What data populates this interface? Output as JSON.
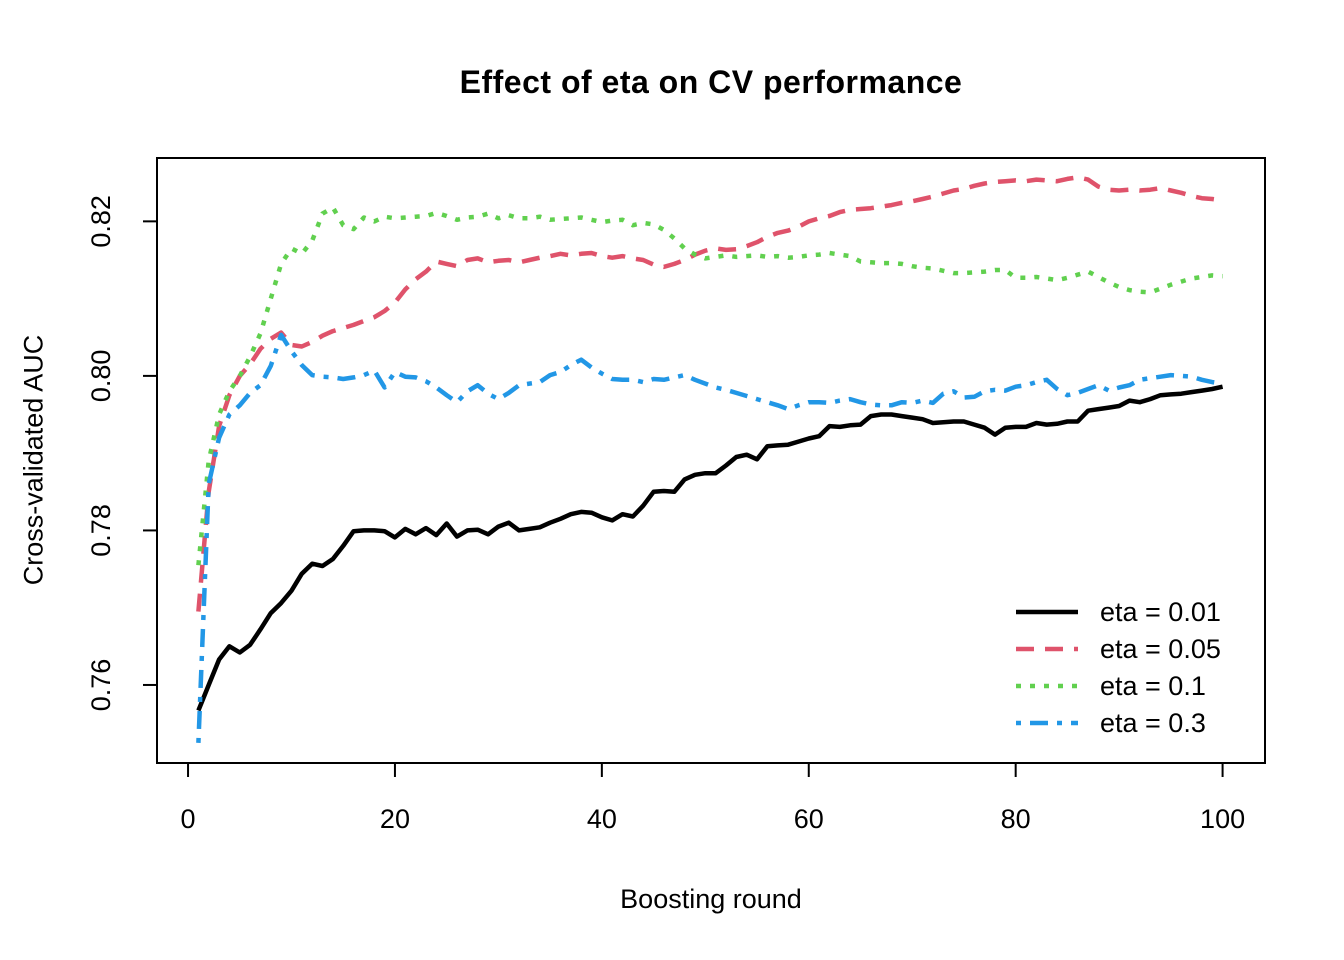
{
  "figure": {
    "title": "Effect of eta on CV performance",
    "xlabel": "Boosting round",
    "ylabel": "Cross-validated AUC"
  },
  "chart_data": {
    "type": "line",
    "title": "Effect of eta on CV performance",
    "xlabel": "Boosting round",
    "ylabel": "Cross-validated AUC",
    "grid": false,
    "legend_position": "bottom-right-inside",
    "xlim": [
      -3.0,
      104.1
    ],
    "ylim": [
      0.7499,
      0.8282
    ],
    "x_ticks": [
      0,
      20,
      40,
      60,
      80,
      100
    ],
    "x_tick_labels": [
      "0",
      "20",
      "40",
      "60",
      "80",
      "100"
    ],
    "y_ticks": [
      0.76,
      0.78,
      0.8,
      0.82
    ],
    "y_tick_labels": [
      "0.76",
      "0.78",
      "0.80",
      "0.82"
    ],
    "x": [
      1,
      2,
      3,
      4,
      5,
      6,
      7,
      8,
      9,
      10,
      11,
      12,
      13,
      14,
      15,
      16,
      17,
      18,
      19,
      20,
      21,
      22,
      23,
      24,
      25,
      26,
      27,
      28,
      29,
      30,
      31,
      32,
      33,
      34,
      35,
      36,
      37,
      38,
      39,
      40,
      41,
      42,
      43,
      44,
      45,
      46,
      47,
      48,
      49,
      50,
      51,
      52,
      53,
      54,
      55,
      56,
      57,
      58,
      59,
      60,
      61,
      62,
      63,
      64,
      65,
      66,
      67,
      68,
      69,
      70,
      71,
      72,
      73,
      74,
      75,
      76,
      77,
      78,
      79,
      80,
      81,
      82,
      83,
      84,
      85,
      86,
      87,
      88,
      89,
      90,
      91,
      92,
      93,
      94,
      95,
      96,
      97,
      98,
      99,
      100
    ],
    "series": [
      {
        "name": "eta = 0.01",
        "color": "#000000",
        "line_style": "solid",
        "values": [
          0.7567,
          0.76,
          0.7633,
          0.765,
          0.7642,
          0.7652,
          0.7672,
          0.7693,
          0.7706,
          0.7722,
          0.7744,
          0.7757,
          0.7754,
          0.7763,
          0.778,
          0.7799,
          0.78,
          0.78,
          0.7799,
          0.7791,
          0.7802,
          0.7795,
          0.7803,
          0.7794,
          0.7809,
          0.7792,
          0.78,
          0.7801,
          0.7795,
          0.7805,
          0.781,
          0.78,
          0.7802,
          0.7804,
          0.781,
          0.7815,
          0.7821,
          0.7824,
          0.7823,
          0.7817,
          0.7813,
          0.7821,
          0.7818,
          0.7832,
          0.785,
          0.7851,
          0.785,
          0.7866,
          0.7872,
          0.7874,
          0.7874,
          0.7884,
          0.7895,
          0.7898,
          0.7892,
          0.7909,
          0.791,
          0.7911,
          0.7915,
          0.7919,
          0.7922,
          0.7935,
          0.7934,
          0.7936,
          0.7937,
          0.7948,
          0.795,
          0.795,
          0.7948,
          0.7946,
          0.7944,
          0.7939,
          0.794,
          0.7941,
          0.7941,
          0.7937,
          0.7933,
          0.7924,
          0.7933,
          0.7934,
          0.7934,
          0.7939,
          0.7937,
          0.7938,
          0.7941,
          0.7941,
          0.7955,
          0.7957,
          0.7959,
          0.7961,
          0.7968,
          0.7966,
          0.797,
          0.7975,
          0.7976,
          0.7977,
          0.7979,
          0.7981,
          0.7983,
          0.7986
        ]
      },
      {
        "name": "eta = 0.05",
        "color": "#DF536B",
        "line_style": "dashed",
        "values": [
          0.7695,
          0.785,
          0.7935,
          0.7975,
          0.8,
          0.8015,
          0.8035,
          0.8048,
          0.8056,
          0.804,
          0.8038,
          0.8044,
          0.8052,
          0.8058,
          0.8062,
          0.8066,
          0.8071,
          0.8076,
          0.8084,
          0.8095,
          0.8112,
          0.8125,
          0.8135,
          0.8148,
          0.8145,
          0.8142,
          0.815,
          0.8152,
          0.8147,
          0.8149,
          0.815,
          0.8147,
          0.815,
          0.8153,
          0.8155,
          0.8158,
          0.8156,
          0.8158,
          0.8159,
          0.8155,
          0.8153,
          0.8155,
          0.8152,
          0.815,
          0.8144,
          0.8141,
          0.8145,
          0.815,
          0.8157,
          0.8162,
          0.8165,
          0.8163,
          0.8164,
          0.8168,
          0.8173,
          0.818,
          0.8185,
          0.8188,
          0.8193,
          0.82,
          0.8204,
          0.8207,
          0.8212,
          0.8215,
          0.8216,
          0.8217,
          0.8219,
          0.8221,
          0.8224,
          0.8226,
          0.8229,
          0.8232,
          0.8236,
          0.824,
          0.8242,
          0.8246,
          0.8249,
          0.8251,
          0.8252,
          0.8253,
          0.8252,
          0.8254,
          0.8253,
          0.8252,
          0.8255,
          0.8257,
          0.8254,
          0.8245,
          0.8241,
          0.824,
          0.8241,
          0.824,
          0.8241,
          0.8243,
          0.824,
          0.8237,
          0.8233,
          0.823,
          0.8229,
          0.8227
        ]
      },
      {
        "name": "eta = 0.1",
        "color": "#61D04F",
        "line_style": "dotted",
        "values": [
          0.7755,
          0.789,
          0.795,
          0.798,
          0.8,
          0.8025,
          0.8055,
          0.81,
          0.8145,
          0.8165,
          0.8158,
          0.8175,
          0.821,
          0.8218,
          0.8195,
          0.819,
          0.8205,
          0.82,
          0.8206,
          0.8204,
          0.8205,
          0.8206,
          0.8207,
          0.8211,
          0.8207,
          0.8202,
          0.8205,
          0.8206,
          0.821,
          0.8204,
          0.8208,
          0.8204,
          0.8204,
          0.8206,
          0.8202,
          0.8203,
          0.8204,
          0.8205,
          0.8202,
          0.8199,
          0.8201,
          0.8202,
          0.8195,
          0.8198,
          0.8196,
          0.8189,
          0.8178,
          0.8165,
          0.8157,
          0.8152,
          0.8154,
          0.8156,
          0.8154,
          0.8155,
          0.8156,
          0.8154,
          0.8155,
          0.8153,
          0.8154,
          0.8156,
          0.8157,
          0.8159,
          0.8157,
          0.8155,
          0.8148,
          0.8147,
          0.8146,
          0.8146,
          0.8145,
          0.8142,
          0.814,
          0.8139,
          0.8136,
          0.8133,
          0.8133,
          0.8134,
          0.8135,
          0.8137,
          0.8137,
          0.8127,
          0.8127,
          0.8128,
          0.8126,
          0.8124,
          0.8127,
          0.8131,
          0.8135,
          0.8128,
          0.8121,
          0.8115,
          0.8111,
          0.8109,
          0.8108,
          0.8113,
          0.8118,
          0.8122,
          0.8126,
          0.8128,
          0.813,
          0.8129
        ]
      },
      {
        "name": "eta = 0.3",
        "color": "#2297E6",
        "line_style": "dotdash",
        "values": [
          0.7525,
          0.786,
          0.792,
          0.795,
          0.7962,
          0.7978,
          0.7988,
          0.8013,
          0.8053,
          0.8032,
          0.8014,
          0.8001,
          0.7999,
          0.7998,
          0.7996,
          0.7998,
          0.8001,
          0.8007,
          0.7985,
          0.8005,
          0.7999,
          0.7998,
          0.7993,
          0.7985,
          0.7975,
          0.7966,
          0.798,
          0.7988,
          0.7977,
          0.797,
          0.7978,
          0.7988,
          0.799,
          0.7992,
          0.8001,
          0.8005,
          0.8014,
          0.8021,
          0.8011,
          0.8003,
          0.7996,
          0.7995,
          0.7995,
          0.7992,
          0.7996,
          0.7995,
          0.7998,
          0.8001,
          0.7995,
          0.799,
          0.7985,
          0.7982,
          0.7978,
          0.7974,
          0.797,
          0.7966,
          0.7962,
          0.7957,
          0.7962,
          0.7966,
          0.7966,
          0.7965,
          0.7968,
          0.797,
          0.7966,
          0.7963,
          0.7962,
          0.7962,
          0.7966,
          0.7965,
          0.7968,
          0.7965,
          0.7977,
          0.798,
          0.7972,
          0.7973,
          0.798,
          0.7982,
          0.7981,
          0.7986,
          0.7988,
          0.7992,
          0.7995,
          0.7983,
          0.7975,
          0.7978,
          0.7983,
          0.7988,
          0.7981,
          0.7985,
          0.7988,
          0.7995,
          0.7997,
          0.7999,
          0.8001,
          0.8,
          0.7999,
          0.7995,
          0.7992,
          0.799
        ]
      }
    ]
  }
}
